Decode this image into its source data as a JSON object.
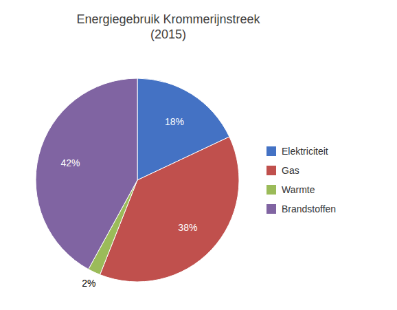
{
  "chart_data": {
    "type": "pie",
    "title": "Energiegebruik Krommerijnstreek\n(2015)",
    "categories": [
      "Elektriciteit",
      "Gas",
      "Warmte",
      "Brandstoffen"
    ],
    "values": [
      18,
      38,
      2,
      42
    ],
    "value_labels": [
      "18%",
      "38%",
      "2%",
      "42%"
    ],
    "colors": [
      "#4472C4",
      "#C0504D",
      "#9BBB59",
      "#8064A2"
    ],
    "data_labels": true,
    "legend": "right"
  }
}
